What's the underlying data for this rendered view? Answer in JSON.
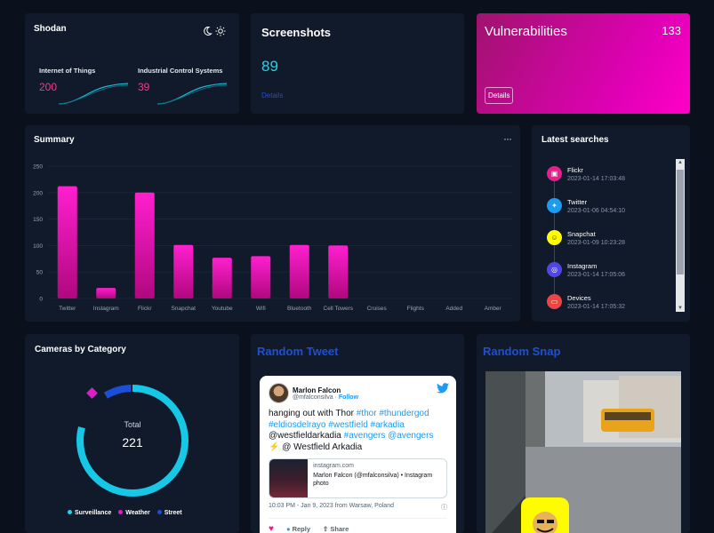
{
  "shodan": {
    "title": "Shodan",
    "metrics": [
      {
        "label": "Internet of Things",
        "value": "200"
      },
      {
        "label": "Industrial Control Systems",
        "value": "39"
      }
    ]
  },
  "screenshots": {
    "title": "Screenshots",
    "count": "89",
    "link": "Details"
  },
  "vulnerabilities": {
    "title": "Vulnerabilities",
    "count": "133",
    "button": "Details"
  },
  "summary": {
    "title": "Summary",
    "more": "···"
  },
  "chart_data": {
    "type": "bar",
    "categories": [
      "Twitter",
      "Instagram",
      "Flickr",
      "Snapchat",
      "Youtube",
      "Wifi",
      "Bluetooth",
      "Cell Towers",
      "Cruises",
      "Flights",
      "Added",
      "Amber"
    ],
    "values": [
      212,
      20,
      200,
      101,
      77,
      80,
      101,
      100,
      0,
      0,
      0,
      0
    ],
    "yticks": [
      0,
      50,
      100,
      150,
      200,
      250
    ],
    "ylim": [
      0,
      250
    ],
    "grid": true,
    "colors": {
      "bar_top": "#ff1fcf",
      "bar_bottom": "#b0087f"
    }
  },
  "latest": {
    "title": "Latest searches",
    "items": [
      {
        "name": "Flickr",
        "date": "2023-01-14 17:03:48",
        "color": "#e91e8c",
        "icon": "image-icon"
      },
      {
        "name": "Twitter",
        "date": "2023-01-06 04:54:10",
        "color": "#1d9bf0",
        "icon": "twitter-icon"
      },
      {
        "name": "Snapchat",
        "date": "2023-01-09 10:23:28",
        "color": "#fffc00",
        "icon": "snapchat-icon"
      },
      {
        "name": "Instagram",
        "date": "2023-01-14 17:05:06",
        "color": "#4f46e5",
        "icon": "instagram-icon"
      },
      {
        "name": "Devices",
        "date": "2023-01-14 17:05:32",
        "color": "#ef4444",
        "icon": "device-icon"
      }
    ]
  },
  "cameras": {
    "title": "Cameras by Category",
    "total_label": "Total",
    "total": "221",
    "legend": [
      {
        "name": "Surveillance",
        "color": "#22d3ee"
      },
      {
        "name": "Weather",
        "color": "#e879f9"
      },
      {
        "name": "Street",
        "color": "#1d4ed8"
      }
    ]
  },
  "tweet": {
    "card_title": "Random Tweet",
    "author": "Marlon Falcon",
    "handle": "@mfalconsilva",
    "follow": "Follow",
    "text_plain_1": "hanging out with Thor ",
    "tag1": "#thor",
    "tag2": "#thundergod",
    "tag3": "#eldiosdelrayo",
    "tag4": "#westfield",
    "tag5": "#arkadia",
    "mention_line": "@westfieldarkadia ",
    "tag6": "#avengers",
    "tag7": "@avengers",
    "location_line": "⚡ @ Westfield Arkadia",
    "link_domain": "instagram.com",
    "link_title": "Marlon Falcon (@mfalconsilva) • Instagram photo",
    "meta": "10:03 PM - Jan 9, 2023 from Warsaw, Poland",
    "reply": "Reply",
    "share": "Share"
  },
  "snap": {
    "card_title": "Random Snap"
  }
}
